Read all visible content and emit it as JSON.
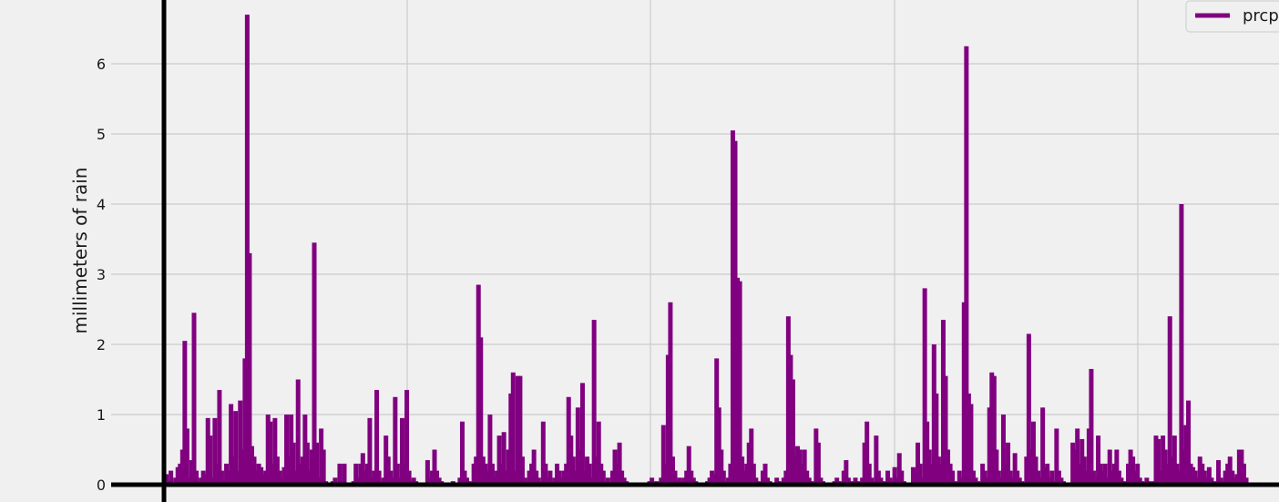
{
  "chart_data": {
    "type": "bar",
    "title": "",
    "xlabel": "",
    "ylabel": "millimeters of rain",
    "ylim": [
      0,
      6.8
    ],
    "yticks": [
      0,
      1,
      2,
      3,
      4,
      5,
      6
    ],
    "xticks": [],
    "grid": true,
    "legend_position": "top-right",
    "series": [
      {
        "name": "prcp",
        "color": "#800080",
        "values": [
          2.15,
          0.15,
          0.05,
          0.2,
          0,
          0.1,
          0.25,
          0.3,
          0.5,
          2.05,
          0.8,
          0.1,
          0.35,
          2.45,
          0.2,
          0.05,
          0.1,
          0.2,
          0.15,
          0.95,
          0.7,
          0.1,
          0.95,
          0.3,
          1.35,
          0.2,
          0.05,
          0.3,
          0.2,
          1.15,
          0.4,
          1.05,
          0.2,
          1.2,
          0.5,
          1.8,
          6.7,
          3.3,
          0.55,
          0.4,
          0.2,
          0.3,
          0.25,
          0.15,
          0.2,
          1.0,
          0.9,
          0.3,
          0.95,
          0.4,
          0.2,
          0.1,
          0.25,
          1.0,
          0.4,
          1.0,
          0.6,
          0.2,
          1.5,
          0.3,
          0.4,
          1.0,
          0.6,
          0.2,
          0.5,
          3.45,
          0.6,
          0.1,
          0.8,
          0.5,
          0.05,
          0,
          0.02,
          0.05,
          0.1,
          0,
          0.3,
          0.05,
          0.3,
          0.02,
          0,
          0.01,
          0.05,
          0.3,
          0.1,
          0.3,
          0.45,
          0.2,
          0.3,
          0.95,
          0.1,
          0.2,
          1.35,
          0.2,
          0.05,
          0.1,
          0.7,
          0.4,
          0.2,
          0.1,
          1.25,
          0.3,
          0.1,
          0.95,
          0.3,
          1.35,
          0.2,
          0.05,
          0.1,
          0.05,
          0.02,
          0,
          0.01,
          0.02,
          0.35,
          0.1,
          0.2,
          0.5,
          0.2,
          0.1,
          0.05,
          0,
          0.01,
          0,
          0.02,
          0.05,
          0,
          0.02,
          0.1,
          0.9,
          0.2,
          0.1,
          0.05,
          0.02,
          0.3,
          0.4,
          2.85,
          2.1,
          0.4,
          0.3,
          0.2,
          1.0,
          0.3,
          0.1,
          0.2,
          0.7,
          0.3,
          0.75,
          0.2,
          0.5,
          1.3,
          1.6,
          0.2,
          1.55,
          1.55,
          0.4,
          0.1,
          0.05,
          0.2,
          0.3,
          0.5,
          0.2,
          0.1,
          0.05,
          0.9,
          0.3,
          0.1,
          0.2,
          0.05,
          0.1,
          0.3,
          0.2,
          0.1,
          0.2,
          0.3,
          1.25,
          0.7,
          0.4,
          0.2,
          1.1,
          0.5,
          1.45,
          0.2,
          0.4,
          0.3,
          0.1,
          2.35,
          0.4,
          0.9,
          0.3,
          0.2,
          0.05,
          0.1,
          0.02,
          0.2,
          0.5,
          0.3,
          0.6,
          0.2,
          0.1,
          0.05,
          0.02,
          0,
          0.01,
          0,
          0.02,
          0,
          0.01,
          0,
          0.02,
          0.05,
          0.1,
          0,
          0.05,
          0.02,
          0.1,
          0.85,
          0.3,
          1.85,
          2.6,
          0.4,
          0.2,
          0.05,
          0.1,
          0.05,
          0.1,
          0.2,
          0.55,
          0.2,
          0.1,
          0.05,
          0.02,
          0,
          0.01,
          0.02,
          0.05,
          0.1,
          0.2,
          0.15,
          1.8,
          1.1,
          0.5,
          0.2,
          0.05,
          0.1,
          0.3,
          5.05,
          4.9,
          2.95,
          2.9,
          0.4,
          0.2,
          0.3,
          0.6,
          0.8,
          0.3,
          0.1,
          0.05,
          0.02,
          0.2,
          0.3,
          0.1,
          0.05,
          0.02,
          0.01,
          0.1,
          0.05,
          0.02,
          0.1,
          0.2,
          2.4,
          1.85,
          1.5,
          0.4,
          0.55,
          0.5,
          0.3,
          0.5,
          0.2,
          0.1,
          0.05,
          0.02,
          0.8,
          0.6,
          0.1,
          0.05,
          0.02,
          0,
          0.01,
          0.02,
          0.05,
          0.1,
          0.05,
          0.02,
          0.2,
          0.35,
          0.1,
          0.05,
          0.02,
          0.1,
          0.05,
          0.02,
          0.1,
          0.6,
          0.9,
          0.3,
          0.1,
          0.05,
          0.7,
          0.2,
          0.1,
          0.05,
          0.02,
          0.2,
          0.1,
          0.05,
          0.25,
          0.1,
          0.45,
          0.2,
          0.05,
          0.02,
          0.01,
          0.02,
          0.25,
          0.2,
          0.6,
          0.3,
          0.1,
          2.8,
          0.9,
          0.5,
          0.3,
          2.0,
          1.3,
          0.4,
          0.3,
          2.35,
          1.55,
          0.5,
          0.3,
          0.2,
          0.05,
          0.02,
          0.2,
          0.1,
          2.6,
          6.25,
          1.3,
          1.15,
          0.2,
          0.1,
          0.05,
          0.02,
          0.3,
          0.2,
          0.1,
          1.1,
          1.6,
          1.55,
          0.5,
          0.2,
          0.1,
          1.0,
          0.3,
          0.6,
          0.2,
          0.1,
          0.45,
          0.2,
          0.1,
          0.05,
          0.02,
          0.4,
          2.15,
          0.5,
          0.9,
          0.4,
          0.2,
          0.1,
          1.1,
          0.25,
          0.3,
          0.1,
          0.2,
          0.05,
          0.8,
          0.2,
          0.1,
          0.05,
          0.02,
          0.01,
          0,
          0.6,
          0.5,
          0.8,
          0.3,
          0.65,
          0.4,
          0.2,
          0.8,
          1.65,
          0.2,
          0.1,
          0.7,
          0.3,
          0.2,
          0.3,
          0.1,
          0.5,
          0.2,
          0.3,
          0.5,
          0.2,
          0.1,
          0.05,
          0.02,
          0.3,
          0.5,
          0.4,
          0.2,
          0.3,
          0.1,
          0.05,
          0.02,
          0.1,
          0.05,
          0.02,
          0.05,
          0.7,
          0.65,
          0.2,
          0.7,
          0.5,
          0.3,
          2.4,
          0.4,
          0.7,
          0.3,
          0.2,
          4.0,
          0.5,
          0.85,
          1.2,
          0.3,
          0.25,
          0.2,
          0.1,
          0.4,
          0.3,
          0.2,
          0.1,
          0.25,
          0.1,
          0.05,
          0.02,
          0.35,
          0.1,
          0.05,
          0.2,
          0.3,
          0.4,
          0.2,
          0.1,
          0.15,
          0.5,
          0.5,
          0.3,
          0.1
        ]
      }
    ]
  }
}
